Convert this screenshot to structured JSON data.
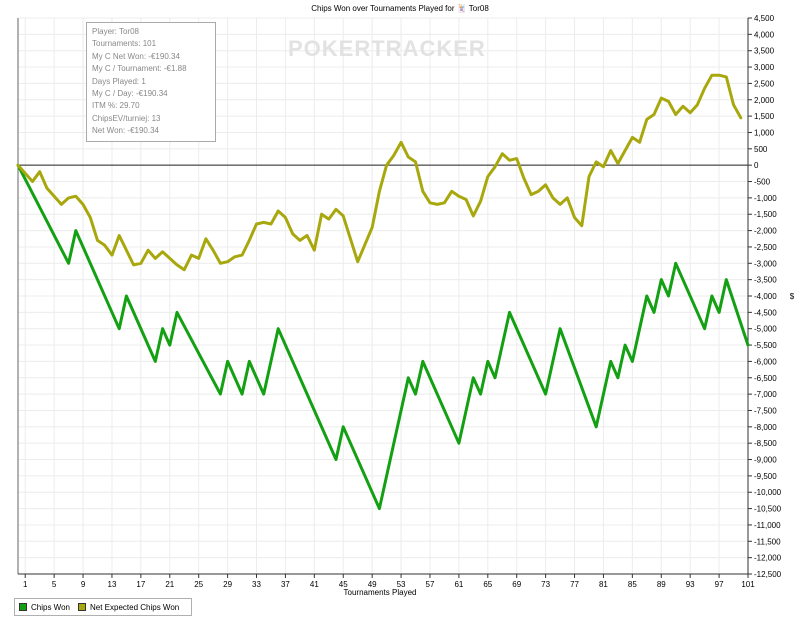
{
  "chart_data": {
    "type": "line",
    "title": "Chips Won over Tournaments Played for 🃏 Tor08",
    "xlabel": "Tournaments Played",
    "ylabel": "$",
    "xlim": [
      0,
      101
    ],
    "ylim": [
      -12500,
      4500
    ],
    "x_ticks": [
      1,
      5,
      9,
      13,
      17,
      21,
      25,
      29,
      33,
      37,
      41,
      45,
      49,
      53,
      57,
      61,
      65,
      69,
      73,
      77,
      81,
      85,
      89,
      93,
      97,
      101
    ],
    "y_ticks": [
      4500,
      4000,
      3500,
      3000,
      2500,
      2000,
      1500,
      1000,
      500,
      0,
      -500,
      -1000,
      -1500,
      -2000,
      -2500,
      -3000,
      -3500,
      -4000,
      -4500,
      -5000,
      -5500,
      -6000,
      -6500,
      -7000,
      -7500,
      -8000,
      -8500,
      -9000,
      -9500,
      -10000,
      -10500,
      -11000,
      -11500,
      -12000,
      -12500
    ],
    "y_tick_labels": [
      "4,500",
      "4,000",
      "3,500",
      "3,000",
      "2,500",
      "2,000",
      "1,500",
      "1,000",
      "500",
      "0",
      "-500",
      "-1,000",
      "-1,500",
      "-2,000",
      "-2,500",
      "-3,000",
      "-3,500",
      "-4,000",
      "-4,500",
      "-5,000",
      "-5,500",
      "-6,000",
      "-6,500",
      "-7,000",
      "-7,500",
      "-8,000",
      "-8,500",
      "-9,000",
      "-9,500",
      "-10,000",
      "-10,500",
      "-11,000",
      "-11,500",
      "-12,000",
      "-12,500"
    ],
    "grid": true,
    "legend_position": "bottom-left",
    "series": [
      {
        "name": "Chips Won",
        "color": "#13a013",
        "points": [
          [
            0,
            0
          ],
          [
            7,
            -3000
          ],
          [
            8,
            -2000
          ],
          [
            14,
            -5000
          ],
          [
            15,
            -4000
          ],
          [
            19,
            -6000
          ],
          [
            20,
            -5000
          ],
          [
            21,
            -5500
          ],
          [
            22,
            -4500
          ],
          [
            28,
            -7000
          ],
          [
            29,
            -6000
          ],
          [
            31,
            -7000
          ],
          [
            32,
            -6000
          ],
          [
            34,
            -7000
          ],
          [
            36,
            -5000
          ],
          [
            44,
            -9000
          ],
          [
            45,
            -8000
          ],
          [
            50,
            -10500
          ],
          [
            54,
            -6500
          ],
          [
            55,
            -7000
          ],
          [
            56,
            -6000
          ],
          [
            61,
            -8500
          ],
          [
            63,
            -6500
          ],
          [
            64,
            -7000
          ],
          [
            65,
            -6000
          ],
          [
            66,
            -6500
          ],
          [
            68,
            -4500
          ],
          [
            73,
            -7000
          ],
          [
            75,
            -5000
          ],
          [
            80,
            -8000
          ],
          [
            82,
            -6000
          ],
          [
            83,
            -6500
          ],
          [
            84,
            -5500
          ],
          [
            85,
            -6000
          ],
          [
            87,
            -4000
          ],
          [
            88,
            -4500
          ],
          [
            89,
            -3500
          ],
          [
            90,
            -4000
          ],
          [
            91,
            -3000
          ],
          [
            95,
            -5000
          ],
          [
            96,
            -4000
          ],
          [
            97,
            -4500
          ],
          [
            98,
            -3500
          ],
          [
            101,
            -5500
          ]
        ]
      },
      {
        "name": "Net Expected Chips Won",
        "color": "#a8a80e",
        "points": [
          [
            0,
            0
          ],
          [
            2,
            -500
          ],
          [
            3,
            -200
          ],
          [
            4,
            -700
          ],
          [
            6,
            -1200
          ],
          [
            7,
            -1000
          ],
          [
            8,
            -950
          ],
          [
            9,
            -1200
          ],
          [
            10,
            -1600
          ],
          [
            11,
            -2300
          ],
          [
            12,
            -2450
          ],
          [
            13,
            -2750
          ],
          [
            14,
            -2150
          ],
          [
            16,
            -3050
          ],
          [
            17,
            -3000
          ],
          [
            18,
            -2600
          ],
          [
            19,
            -2850
          ],
          [
            20,
            -2650
          ],
          [
            21,
            -2850
          ],
          [
            22,
            -3050
          ],
          [
            23,
            -3200
          ],
          [
            24,
            -2750
          ],
          [
            25,
            -2850
          ],
          [
            26,
            -2250
          ],
          [
            27,
            -2600
          ],
          [
            28,
            -3000
          ],
          [
            29,
            -2950
          ],
          [
            30,
            -2800
          ],
          [
            31,
            -2750
          ],
          [
            32,
            -2300
          ],
          [
            33,
            -1800
          ],
          [
            34,
            -1750
          ],
          [
            35,
            -1800
          ],
          [
            36,
            -1400
          ],
          [
            37,
            -1600
          ],
          [
            38,
            -2100
          ],
          [
            39,
            -2300
          ],
          [
            40,
            -2150
          ],
          [
            41,
            -2600
          ],
          [
            42,
            -1500
          ],
          [
            43,
            -1650
          ],
          [
            44,
            -1350
          ],
          [
            45,
            -1550
          ],
          [
            47,
            -2950
          ],
          [
            49,
            -1900
          ],
          [
            50,
            -800
          ],
          [
            51,
            0
          ],
          [
            52,
            300
          ],
          [
            53,
            700
          ],
          [
            54,
            250
          ],
          [
            55,
            100
          ],
          [
            56,
            -800
          ],
          [
            57,
            -1150
          ],
          [
            58,
            -1200
          ],
          [
            59,
            -1150
          ],
          [
            60,
            -800
          ],
          [
            61,
            -950
          ],
          [
            62,
            -1050
          ],
          [
            63,
            -1550
          ],
          [
            64,
            -1100
          ],
          [
            65,
            -350
          ],
          [
            66,
            -50
          ],
          [
            67,
            350
          ],
          [
            68,
            150
          ],
          [
            69,
            200
          ],
          [
            70,
            -400
          ],
          [
            71,
            -900
          ],
          [
            72,
            -800
          ],
          [
            73,
            -600
          ],
          [
            74,
            -1000
          ],
          [
            75,
            -1200
          ],
          [
            76,
            -1000
          ],
          [
            77,
            -1600
          ],
          [
            78,
            -1850
          ],
          [
            79,
            -350
          ],
          [
            80,
            100
          ],
          [
            81,
            -50
          ],
          [
            82,
            450
          ],
          [
            83,
            50
          ],
          [
            84,
            450
          ],
          [
            85,
            850
          ],
          [
            86,
            700
          ],
          [
            87,
            1400
          ],
          [
            88,
            1550
          ],
          [
            89,
            2050
          ],
          [
            90,
            1950
          ],
          [
            91,
            1550
          ],
          [
            92,
            1800
          ],
          [
            93,
            1600
          ],
          [
            94,
            1850
          ],
          [
            95,
            2350
          ],
          [
            96,
            2750
          ],
          [
            97,
            2750
          ],
          [
            98,
            2700
          ],
          [
            99,
            1850
          ],
          [
            100,
            1450
          ]
        ]
      }
    ]
  },
  "info_box": {
    "lines": [
      "Player: Tor08",
      "Tournaments: 101",
      "My C Net Won: -€190.34",
      "My C / Tournament: -€1.88",
      "Days Played: 1",
      "My C / Day: -€190.34",
      "ITM %: 29.70",
      "ChipsEV/turniej: 13",
      "Net Won: -€190.34"
    ]
  },
  "watermark": "POKERTRACKER",
  "legend": {
    "items": [
      {
        "label": "Chips Won",
        "color": "#13a013"
      },
      {
        "label": "Net Expected Chips Won",
        "color": "#a8a80e"
      }
    ]
  }
}
